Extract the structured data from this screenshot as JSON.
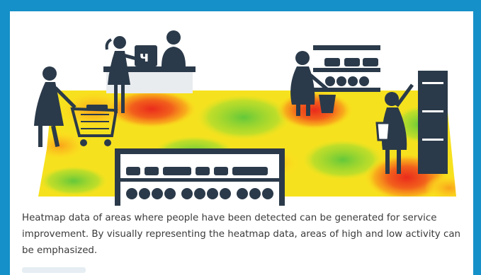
{
  "caption": {
    "text": "Heatmap data of areas where people have been detected can be generated for service improvement. By visually representing the heatmap data, areas of high and low activity can be emphasized."
  },
  "illustration": {
    "register_glyph": "ч",
    "colors": {
      "frame": "#1590c8",
      "figure": "#2b3a4a",
      "heat_hot": "#ea2b1c",
      "heat_warm": "#f9a21b",
      "heat_mid": "#fbe61e",
      "heat_cool": "#a8dc2e",
      "heat_cold": "#63c83a"
    }
  }
}
